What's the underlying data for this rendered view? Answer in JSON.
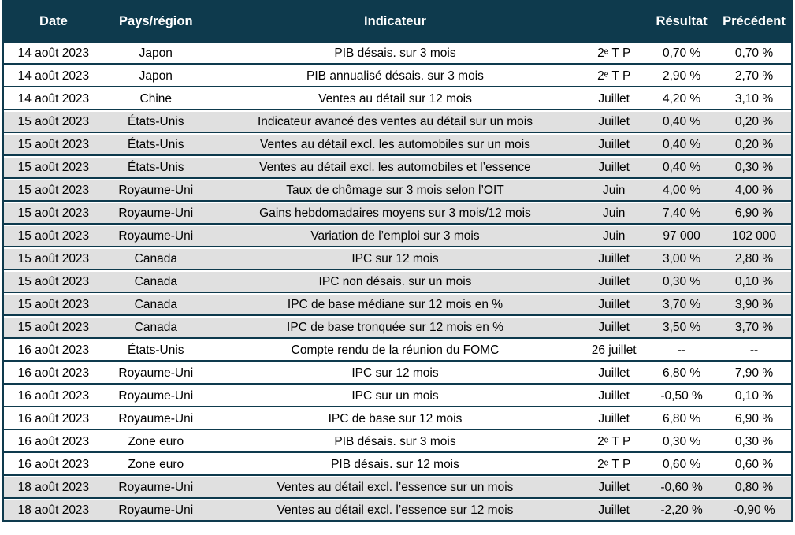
{
  "colors": {
    "header_bg": "#0e3a4d",
    "header_text": "#ffffff",
    "border": "#0e3a4d",
    "row_plain_bg": "#ffffff",
    "row_shaded_bg": "#e0e0e0",
    "body_text": "#000000"
  },
  "table": {
    "columns": [
      {
        "key": "date",
        "label": "Date"
      },
      {
        "key": "region",
        "label": "Pays/région"
      },
      {
        "key": "indicator",
        "label": "Indicateur"
      },
      {
        "key": "period",
        "label": ""
      },
      {
        "key": "result",
        "label": "Résultat"
      },
      {
        "key": "previous",
        "label": "Précédent"
      }
    ],
    "rows": [
      {
        "date": "14 août 2023",
        "region": "Japon",
        "indicator": "PIB désais. sur 3 mois",
        "period": "2ᵉ T P",
        "result": "0,70 %",
        "previous": "0,70 %",
        "shaded": false
      },
      {
        "date": "14 août 2023",
        "region": "Japon",
        "indicator": "PIB annualisé désais. sur 3 mois",
        "period": "2ᵉ T P",
        "result": "2,90 %",
        "previous": "2,70 %",
        "shaded": false
      },
      {
        "date": "14 août 2023",
        "region": "Chine",
        "indicator": "Ventes au détail sur 12 mois",
        "period": "Juillet",
        "result": "4,20 %",
        "previous": "3,10 %",
        "shaded": false
      },
      {
        "date": "15 août 2023",
        "region": "États-Unis",
        "indicator": "Indicateur avancé des ventes au détail sur un mois",
        "period": "Juillet",
        "result": "0,40 %",
        "previous": "0,20 %",
        "shaded": true
      },
      {
        "date": "15 août 2023",
        "region": "États-Unis",
        "indicator": "Ventes au détail excl. les automobiles sur un mois",
        "period": "Juillet",
        "result": "0,40 %",
        "previous": "0,20 %",
        "shaded": true
      },
      {
        "date": "15 août 2023",
        "region": "États-Unis",
        "indicator": "Ventes au détail excl. les automobiles et l’essence",
        "period": "Juillet",
        "result": "0,40 %",
        "previous": "0,30 %",
        "shaded": true
      },
      {
        "date": "15 août 2023",
        "region": "Royaume-Uni",
        "indicator": "Taux de chômage sur 3 mois selon l’OIT",
        "period": "Juin",
        "result": "4,00 %",
        "previous": "4,00 %",
        "shaded": true
      },
      {
        "date": "15 août 2023",
        "region": "Royaume-Uni",
        "indicator": "Gains hebdomadaires moyens sur 3 mois/12 mois",
        "period": "Juin",
        "result": "7,40 %",
        "previous": "6,90 %",
        "shaded": true
      },
      {
        "date": "15 août 2023",
        "region": "Royaume-Uni",
        "indicator": "Variation de l’emploi sur 3 mois",
        "period": "Juin",
        "result": "97 000",
        "previous": "102 000",
        "shaded": true
      },
      {
        "date": "15 août 2023",
        "region": "Canada",
        "indicator": "IPC sur 12 mois",
        "period": "Juillet",
        "result": "3,00 %",
        "previous": "2,80 %",
        "shaded": true
      },
      {
        "date": "15 août 2023",
        "region": "Canada",
        "indicator": "IPC non désais. sur un mois",
        "period": "Juillet",
        "result": "0,30 %",
        "previous": "0,10 %",
        "shaded": true
      },
      {
        "date": "15 août 2023",
        "region": "Canada",
        "indicator": "IPC de base médiane sur 12 mois en %",
        "period": "Juillet",
        "result": "3,70 %",
        "previous": "3,90 %",
        "shaded": true
      },
      {
        "date": "15 août 2023",
        "region": "Canada",
        "indicator": "IPC de base tronquée sur 12 mois en %",
        "period": "Juillet",
        "result": "3,50 %",
        "previous": "3,70 %",
        "shaded": true
      },
      {
        "date": "16 août 2023",
        "region": "États-Unis",
        "indicator": "Compte rendu de la réunion du FOMC",
        "period": "26 juillet",
        "result": "--",
        "previous": "--",
        "shaded": false
      },
      {
        "date": "16 août 2023",
        "region": "Royaume-Uni",
        "indicator": "IPC sur 12 mois",
        "period": "Juillet",
        "result": "6,80 %",
        "previous": "7,90 %",
        "shaded": false
      },
      {
        "date": "16 août 2023",
        "region": "Royaume-Uni",
        "indicator": "IPC sur un mois",
        "period": "Juillet",
        "result": "-0,50 %",
        "previous": "0,10 %",
        "shaded": false
      },
      {
        "date": "16 août 2023",
        "region": "Royaume-Uni",
        "indicator": "IPC de base sur 12 mois",
        "period": "Juillet",
        "result": "6,80 %",
        "previous": "6,90 %",
        "shaded": false
      },
      {
        "date": "16 août 2023",
        "region": "Zone euro",
        "indicator": "PIB désais. sur 3 mois",
        "period": "2ᵉ T P",
        "result": "0,30 %",
        "previous": "0,30 %",
        "shaded": false
      },
      {
        "date": "16 août 2023",
        "region": "Zone euro",
        "indicator": "PIB désais. sur 12 mois",
        "period": "2ᵉ T P",
        "result": "0,60 %",
        "previous": "0,60 %",
        "shaded": false
      },
      {
        "date": "18 août 2023",
        "region": "Royaume-Uni",
        "indicator": "Ventes au détail excl. l’essence sur un mois",
        "period": "Juillet",
        "result": "-0,60 %",
        "previous": "0,80 %",
        "shaded": true
      },
      {
        "date": "18 août 2023",
        "region": "Royaume-Uni",
        "indicator": "Ventes au détail excl. l’essence sur 12 mois",
        "period": "Juillet",
        "result": "-2,20 %",
        "previous": "-0,90 %",
        "shaded": true
      }
    ]
  }
}
